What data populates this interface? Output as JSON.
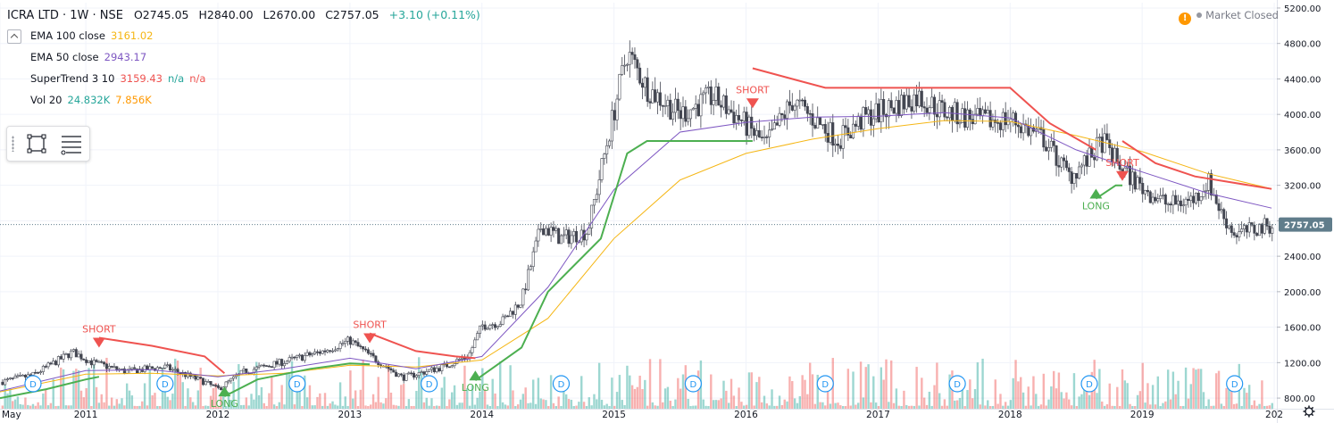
{
  "header": {
    "symbol": "ICRA LTD · 1W · NSE",
    "open": "O2745.05",
    "high": "H2840.00",
    "low": "L2670.00",
    "close": "C2757.05",
    "change": "+3.10 (+0.11%)"
  },
  "indicators": [
    {
      "label": "EMA 100 close",
      "value": "3161.02",
      "color": "#f5b614"
    },
    {
      "label": "EMA 50 close",
      "value": "2943.17",
      "color": "#7e57c2"
    },
    {
      "label": "SuperTrend 3 10",
      "value": "3159.43",
      "value2": "n/a",
      "value3": "n/a",
      "color": "#ef5350"
    },
    {
      "label": "Vol 20",
      "value": "24.832K",
      "value2": "7.856K",
      "color": "#26a69a",
      "color2": "#ff9800"
    }
  ],
  "status": {
    "market": "Market Closed",
    "warning_icon": "!"
  },
  "chart_data": {
    "type": "candlestick",
    "timeframe": "1W",
    "y_ticks": [
      "800.00",
      "1200.00",
      "1600.00",
      "2000.00",
      "2400.00",
      "2800.00",
      "3200.00",
      "3600.00",
      "4000.00",
      "4400.00",
      "4800.00",
      "5200.00"
    ],
    "ylim": [
      680,
      5260
    ],
    "x_ticks": [
      {
        "label": "May",
        "t": 2010.35
      },
      {
        "label": "2011",
        "t": 2011.0
      },
      {
        "label": "2012",
        "t": 2012.0
      },
      {
        "label": "2013",
        "t": 2013.0
      },
      {
        "label": "2014",
        "t": 2014.0
      },
      {
        "label": "2015",
        "t": 2015.0
      },
      {
        "label": "2016",
        "t": 2016.0
      },
      {
        "label": "2017",
        "t": 2017.0
      },
      {
        "label": "2018",
        "t": 2018.0
      },
      {
        "label": "2019",
        "t": 2019.0
      },
      {
        "label": "202",
        "t": 2020.0
      }
    ],
    "xlim": [
      2010.35,
      2020.02
    ],
    "last_price": "2757.05",
    "last_price_value": 2757.05,
    "price_path": [
      [
        2010.35,
        980
      ],
      [
        2010.6,
        1060
      ],
      [
        2010.9,
        1320
      ],
      [
        2011.05,
        1200
      ],
      [
        2011.3,
        1100
      ],
      [
        2011.6,
        1150
      ],
      [
        2011.9,
        980
      ],
      [
        2012.0,
        900
      ],
      [
        2012.2,
        1100
      ],
      [
        2012.5,
        1210
      ],
      [
        2012.8,
        1330
      ],
      [
        2013.0,
        1450
      ],
      [
        2013.15,
        1280
      ],
      [
        2013.4,
        1030
      ],
      [
        2013.7,
        1150
      ],
      [
        2013.9,
        1280
      ],
      [
        2014.0,
        1620
      ],
      [
        2014.15,
        1660
      ],
      [
        2014.3,
        1900
      ],
      [
        2014.45,
        2750
      ],
      [
        2014.6,
        2600
      ],
      [
        2014.8,
        2680
      ],
      [
        2014.95,
        3700
      ],
      [
        2015.1,
        4700
      ],
      [
        2015.25,
        4300
      ],
      [
        2015.5,
        4000
      ],
      [
        2015.75,
        4200
      ],
      [
        2015.95,
        3950
      ],
      [
        2016.05,
        3800
      ],
      [
        2016.15,
        3650
      ],
      [
        2016.35,
        4150
      ],
      [
        2016.55,
        3900
      ],
      [
        2016.7,
        3720
      ],
      [
        2016.9,
        3960
      ],
      [
        2017.1,
        4080
      ],
      [
        2017.3,
        4200
      ],
      [
        2017.5,
        4030
      ],
      [
        2017.8,
        3920
      ],
      [
        2018.0,
        3950
      ],
      [
        2018.25,
        3730
      ],
      [
        2018.45,
        3300
      ],
      [
        2018.6,
        3500
      ],
      [
        2018.7,
        3700
      ],
      [
        2018.85,
        3380
      ],
      [
        2019.0,
        3170
      ],
      [
        2019.2,
        2980
      ],
      [
        2019.4,
        3050
      ],
      [
        2019.5,
        3250
      ],
      [
        2019.6,
        2880
      ],
      [
        2019.7,
        2650
      ],
      [
        2019.85,
        2700
      ],
      [
        2019.98,
        2757
      ]
    ],
    "ema100": [
      [
        2010.35,
        870
      ],
      [
        2011.0,
        1070
      ],
      [
        2011.5,
        1080
      ],
      [
        2012.0,
        1050
      ],
      [
        2012.5,
        1080
      ],
      [
        2013.0,
        1170
      ],
      [
        2013.5,
        1150
      ],
      [
        2014.0,
        1230
      ],
      [
        2014.5,
        1700
      ],
      [
        2015.0,
        2600
      ],
      [
        2015.5,
        3260
      ],
      [
        2016.0,
        3560
      ],
      [
        2016.5,
        3720
      ],
      [
        2017.0,
        3840
      ],
      [
        2017.5,
        3930
      ],
      [
        2018.0,
        3920
      ],
      [
        2018.5,
        3760
      ],
      [
        2019.0,
        3580
      ],
      [
        2019.5,
        3330
      ],
      [
        2019.98,
        3161
      ]
    ],
    "ema50": [
      [
        2010.35,
        880
      ],
      [
        2011.0,
        1110
      ],
      [
        2011.5,
        1120
      ],
      [
        2012.0,
        1040
      ],
      [
        2012.5,
        1130
      ],
      [
        2013.0,
        1250
      ],
      [
        2013.5,
        1130
      ],
      [
        2014.0,
        1270
      ],
      [
        2014.5,
        2050
      ],
      [
        2015.0,
        3150
      ],
      [
        2015.5,
        3800
      ],
      [
        2016.0,
        3910
      ],
      [
        2016.5,
        3970
      ],
      [
        2017.0,
        3980
      ],
      [
        2017.5,
        4020
      ],
      [
        2018.0,
        3960
      ],
      [
        2018.5,
        3600
      ],
      [
        2019.0,
        3350
      ],
      [
        2019.5,
        3110
      ],
      [
        2019.98,
        2943
      ]
    ],
    "supertrend_up_1": [
      [
        2010.35,
        800
      ],
      [
        2010.7,
        900
      ],
      [
        2011.0,
        1010
      ],
      [
        2011.1,
        1040
      ]
    ],
    "supertrend_down_1": [
      [
        2011.1,
        1480
      ],
      [
        2011.5,
        1390
      ],
      [
        2011.9,
        1270
      ],
      [
        2012.05,
        1080
      ]
    ],
    "supertrend_up_2": [
      [
        2012.05,
        820
      ],
      [
        2012.3,
        1010
      ],
      [
        2012.7,
        1130
      ],
      [
        2013.0,
        1190
      ],
      [
        2013.15,
        1180
      ]
    ],
    "supertrend_down_2": [
      [
        2013.15,
        1530
      ],
      [
        2013.5,
        1330
      ],
      [
        2013.8,
        1270
      ],
      [
        2013.95,
        1250
      ]
    ],
    "supertrend_up_3": [
      [
        2013.95,
        1000
      ],
      [
        2014.3,
        1370
      ],
      [
        2014.5,
        2000
      ],
      [
        2014.9,
        2600
      ],
      [
        2015.1,
        3560
      ],
      [
        2015.25,
        3700
      ],
      [
        2016.05,
        3700
      ]
    ],
    "supertrend_down_3": [
      [
        2016.05,
        4520
      ],
      [
        2016.6,
        4300
      ],
      [
        2017.5,
        4300
      ],
      [
        2018.0,
        4300
      ],
      [
        2018.3,
        3900
      ],
      [
        2018.65,
        3600
      ]
    ],
    "supertrend_up_4": [
      [
        2018.65,
        3050
      ],
      [
        2018.8,
        3200
      ],
      [
        2018.85,
        3200
      ]
    ],
    "supertrend_down_4": [
      [
        2018.85,
        3700
      ],
      [
        2019.1,
        3450
      ],
      [
        2019.4,
        3300
      ],
      [
        2019.98,
        3159
      ]
    ],
    "signals": [
      {
        "type": "SHORT",
        "t": 2011.1,
        "price": 1480
      },
      {
        "type": "LONG",
        "t": 2012.05,
        "price": 820
      },
      {
        "type": "SHORT",
        "t": 2013.15,
        "price": 1530
      },
      {
        "type": "LONG",
        "t": 2013.95,
        "price": 1000
      },
      {
        "type": "SHORT",
        "t": 2016.05,
        "price": 4180
      },
      {
        "type": "LONG",
        "t": 2018.65,
        "price": 3050
      },
      {
        "type": "SHORT",
        "t": 2018.85,
        "price": 3360
      }
    ],
    "dividends": [
      2010.6,
      2011.6,
      2012.6,
      2013.6,
      2014.6,
      2015.6,
      2016.6,
      2017.6,
      2018.6,
      2019.7
    ],
    "dividend_label": "D",
    "volume_note": "Vol 20"
  }
}
